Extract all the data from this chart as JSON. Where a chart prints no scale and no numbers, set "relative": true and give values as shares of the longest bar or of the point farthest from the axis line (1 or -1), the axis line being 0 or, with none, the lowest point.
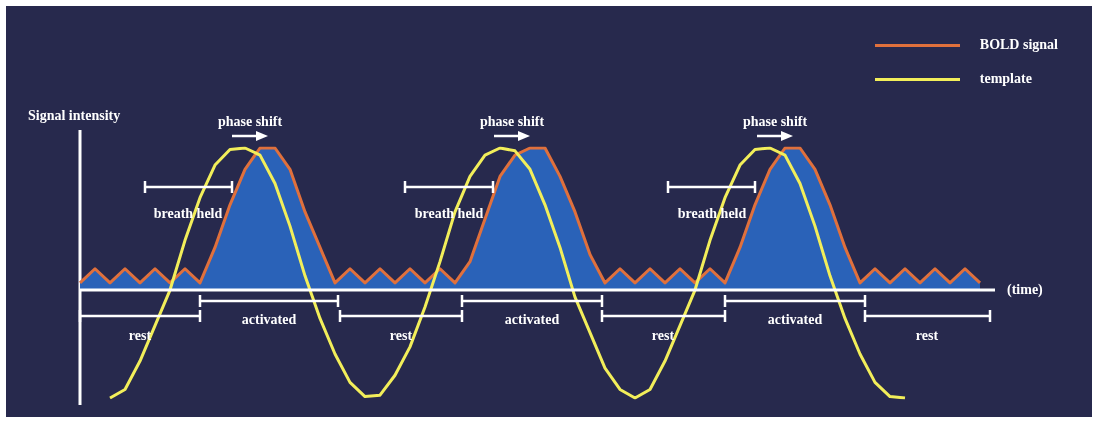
{
  "chart_data": {
    "type": "line",
    "relative": true,
    "ylabel": "Signal intensity",
    "xlabel": "(time)",
    "legend": "top right",
    "grid": false,
    "marker": "none",
    "categories": [
      null,
      null,
      null,
      null,
      null,
      null,
      null,
      null,
      null,
      null,
      null,
      null,
      null,
      null,
      null,
      null,
      null,
      null,
      null,
      null,
      null,
      null,
      null,
      null,
      null,
      null,
      null,
      null,
      null,
      null,
      null,
      null,
      null,
      null,
      null,
      null,
      null,
      null,
      null,
      null,
      null,
      null,
      null,
      null,
      null,
      null,
      null,
      null,
      null,
      null,
      null,
      null,
      null,
      null,
      null,
      null,
      null,
      null,
      null,
      null,
      null,
      null
    ],
    "series": [
      {
        "type": "area",
        "color": "#2a62b8",
        "values": [
          0.05,
          0.15,
          0.05,
          0.15,
          0.05,
          0.15,
          0.05,
          0.15,
          0.05,
          0.3,
          0.6,
          0.85,
          1,
          1,
          0.85,
          0.55,
          0.3,
          0.05,
          0.15,
          0.05,
          0.15,
          0.05,
          0.15,
          0.05,
          0.15,
          0.05,
          0.2,
          0.5,
          0.8,
          0.95,
          1,
          1,
          0.8,
          0.55,
          0.25,
          0.05,
          0.15,
          0.05,
          0.15,
          0.05,
          0.15,
          0.05,
          0.15,
          0.05,
          0.3,
          0.6,
          0.85,
          1,
          1,
          0.85,
          0.6,
          0.3,
          0.05,
          0.15,
          0.05,
          0.15,
          0.05,
          0.15,
          0.05,
          0.15,
          0.05,
          null
        ]
      },
      {
        "name": "BOLD signal",
        "type": "line",
        "color": "#e0703c",
        "values": [
          0.05,
          0.15,
          0.05,
          0.15,
          0.05,
          0.15,
          0.05,
          0.15,
          0.05,
          0.3,
          0.6,
          0.85,
          1,
          1,
          0.85,
          0.55,
          0.3,
          0.05,
          0.15,
          0.05,
          0.15,
          0.05,
          0.15,
          0.05,
          0.15,
          0.05,
          0.2,
          0.5,
          0.8,
          0.95,
          1,
          1,
          0.8,
          0.55,
          0.25,
          0.05,
          0.15,
          0.05,
          0.15,
          0.05,
          0.15,
          0.05,
          0.15,
          0.05,
          0.3,
          0.6,
          0.85,
          1,
          1,
          0.85,
          0.6,
          0.3,
          0.05,
          0.15,
          0.05,
          0.15,
          0.05,
          0.15,
          0.05,
          0.15,
          0.05,
          null
        ]
      },
      {
        "name": "template",
        "type": "line",
        "color": "#f2ee5a",
        "values": [
          null,
          null,
          -0.76,
          -0.7,
          -0.5,
          -0.25,
          0,
          0.35,
          0.65,
          0.88,
          0.99,
          1,
          0.95,
          0.75,
          0.45,
          0.1,
          -0.2,
          -0.45,
          -0.65,
          -0.75,
          -0.74,
          -0.6,
          -0.4,
          -0.12,
          0.2,
          0.55,
          0.8,
          0.95,
          1,
          0.98,
          0.85,
          0.6,
          0.3,
          -0.05,
          -0.3,
          -0.55,
          -0.7,
          -0.76,
          -0.7,
          -0.5,
          -0.25,
          0,
          0.35,
          0.65,
          0.88,
          0.99,
          1,
          0.95,
          0.75,
          0.45,
          0.1,
          -0.2,
          -0.45,
          -0.65,
          -0.75,
          -0.76,
          null,
          null,
          null,
          null,
          null,
          null
        ]
      }
    ],
    "annotations": [
      "phase shift",
      "phase shift",
      "phase shift",
      "breath held",
      "breath held",
      "breath held",
      "activated",
      "activated",
      "activated",
      "rest",
      "rest",
      "rest",
      "rest"
    ]
  }
}
